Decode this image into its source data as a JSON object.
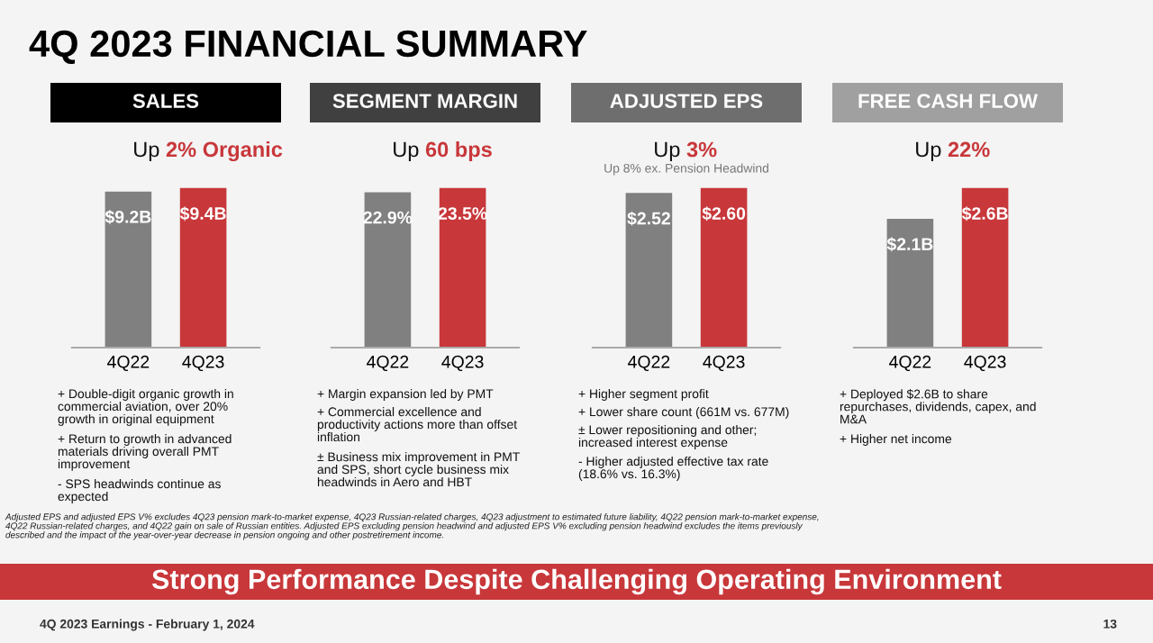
{
  "chart_data": [
    {
      "type": "bar",
      "title": "SALES",
      "subtitle": "Up 2% Organic",
      "categories": [
        "4Q22",
        "4Q23"
      ],
      "values": [
        9.2,
        9.4
      ],
      "colors": [
        "#808080",
        "#c8373a"
      ],
      "value_labels": [
        "$9.2B",
        "$9.4B"
      ],
      "tick_labels": "x",
      "grid": false,
      "legend": false,
      "annotations": [
        "+ Double-digit organic growth in\ncommercial aviation, over 20%\ngrowth in original equipment",
        "+ Return to growth in advanced\nmaterials driving overall PMT\nimprovement",
        "- SPS headwinds continue as\nexpected"
      ]
    },
    {
      "type": "bar",
      "title": "SEGMENT MARGIN",
      "subtitle": "Up 60 bps",
      "categories": [
        "4Q22",
        "4Q23"
      ],
      "values": [
        22.9,
        23.5
      ],
      "colors": [
        "#808080",
        "#c8373a"
      ],
      "value_labels": [
        "22.9%",
        "23.5%"
      ],
      "tick_labels": "x",
      "grid": false,
      "legend": false,
      "annotations": [
        "+ Margin expansion led by PMT",
        "+ Commercial excellence and\nproductivity actions more than offset\ninflation",
        "± Business mix improvement in PMT\nand SPS, short cycle business mix\nheadwinds in Aero and HBT"
      ]
    },
    {
      "type": "bar",
      "title": "ADJUSTED EPS",
      "subtitle": "Up 3%\nUp 8% ex. Pension Headwind",
      "categories": [
        "4Q22",
        "4Q23"
      ],
      "values": [
        2.52,
        2.6
      ],
      "colors": [
        "#808080",
        "#c8373a"
      ],
      "value_labels": [
        "$2.52",
        "$2.60"
      ],
      "tick_labels": "x",
      "grid": false,
      "legend": false,
      "annotations": [
        "+ Higher segment profit",
        "+ Lower share count (661M vs. 677M)",
        "± Lower repositioning and other;\nincreased interest expense",
        "- Higher adjusted effective tax rate\n(18.6% vs. 16.3%)"
      ]
    },
    {
      "type": "bar",
      "title": "FREE CASH FLOW",
      "subtitle": "Up 22%",
      "categories": [
        "4Q22",
        "4Q23"
      ],
      "values": [
        2.1,
        2.6
      ],
      "colors": [
        "#808080",
        "#c8373a"
      ],
      "value_labels": [
        "$2.1B",
        "$2.6B"
      ],
      "tick_labels": "x",
      "grid": false,
      "legend": false,
      "annotations": [
        "+ Deployed $2.6B to share\nrepurchases, dividends, capex, and\nM&A",
        "+ Higher net income"
      ]
    },
    {
      "type": "other",
      "title": "4Q 2023 FINANCIAL SUMMARY",
      "annotations": [
        "Adjusted EPS and adjusted EPS V% excludes 4Q23 pension mark-to-market expense, 4Q23 Russian-related charges, 4Q23 adjustment to estimated future liability, 4Q22 pension mark-to-market expense,\n4Q22 Russian-related charges, and 4Q22 gain on sale of Russian entities. Adjusted EPS excluding pension headwind and adjusted EPS V% excluding pension headwind excludes the items previously\ndescribed and the impact of the year-over-year decrease in pension ongoing and other postretirement income.",
        "Strong Performance Despite Challenging Operating Environment",
        "4Q 2023 Earnings - February 1, 2024",
        "13"
      ]
    }
  ]
}
